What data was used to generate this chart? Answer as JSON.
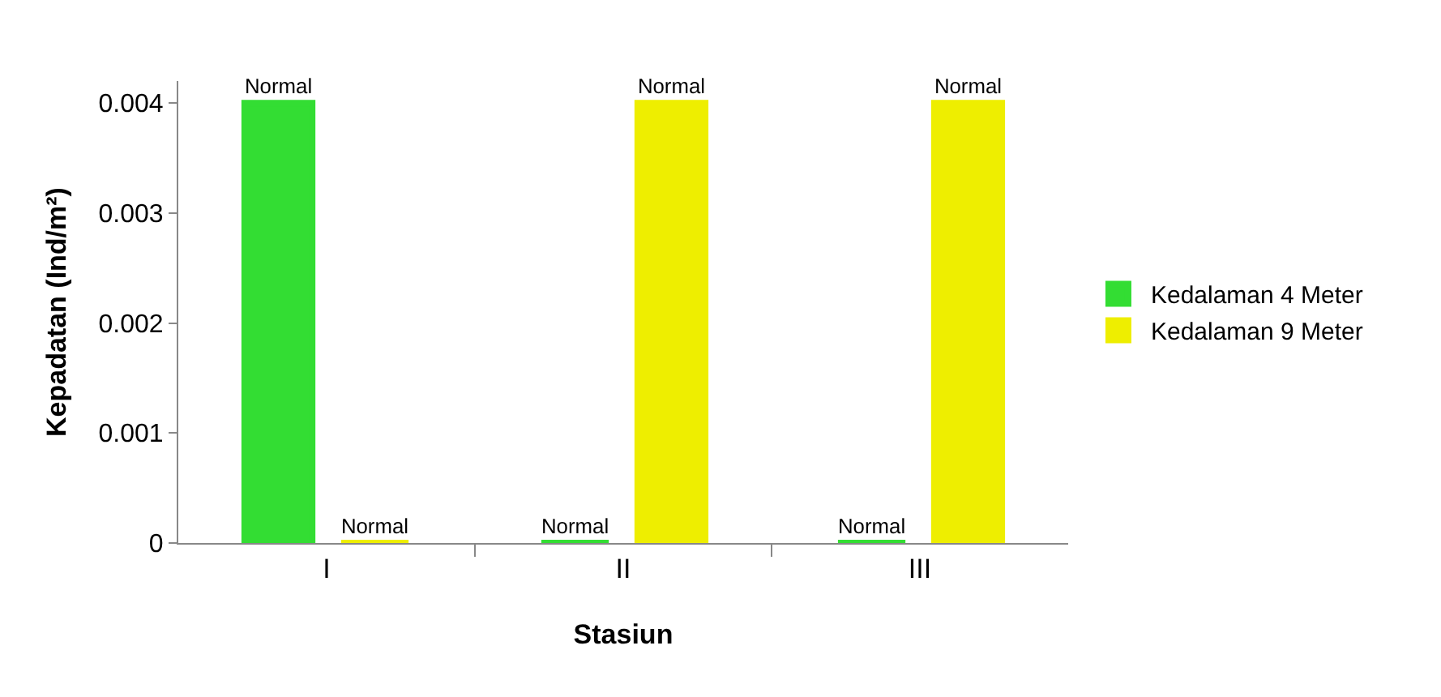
{
  "chart_data": {
    "type": "bar",
    "xlabel": "Stasiun",
    "ylabel": "Kepadatan (Ind/m²)",
    "categories": [
      "I",
      "II",
      "III"
    ],
    "series": [
      {
        "name": "Kedalaman 4 Meter",
        "color": "#33dd33",
        "values": [
          0.004,
          0,
          0
        ],
        "value_labels": [
          "Normal",
          "Normal",
          "Normal"
        ]
      },
      {
        "name": "Kedalaman 9 Meter",
        "color": "#eeee00",
        "values": [
          0,
          0.004,
          0.004
        ],
        "value_labels": [
          "Normal",
          "Normal",
          "Normal"
        ]
      }
    ],
    "ylim": [
      0,
      0.0042
    ],
    "yticks": [
      0,
      0.001,
      0.002,
      0.003,
      0.004
    ],
    "legend": "right"
  }
}
